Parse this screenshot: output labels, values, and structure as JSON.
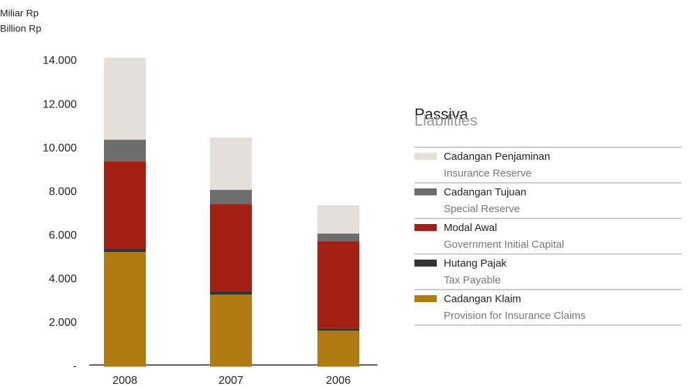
{
  "chart_data": {
    "type": "stacked_bar",
    "y_label": [
      "Miliar Rp",
      "Billion Rp"
    ],
    "legend_title": "Passiva",
    "legend_subtitle": "Liabilities",
    "categories": [
      "2008",
      "2007",
      "2006"
    ],
    "series": [
      {
        "name": "Cadangan Penjaminan",
        "name_en": "Insurance Reserve",
        "color": "#e4e0d9",
        "values": [
          3750,
          2400,
          1300
        ]
      },
      {
        "name": "Cadangan Tujuan",
        "name_en": "Special Reserve",
        "color": "#6d6d6d",
        "values": [
          1000,
          650,
          350
        ]
      },
      {
        "name": "Modal Awal",
        "name_en": "Government Initial Capital",
        "color": "#a32017",
        "values": [
          4000,
          4000,
          4000
        ]
      },
      {
        "name": "Hutang Pajak",
        "name_en": "Tax Payable",
        "color": "#333333",
        "values": [
          150,
          150,
          100
        ]
      },
      {
        "name": "Cadangan Klaim",
        "name_en": "Provision for Insurance Claims",
        "color": "#b07c12",
        "values": [
          5250,
          3300,
          1650
        ]
      }
    ],
    "ylim": [
      0,
      14000
    ],
    "yticks": [
      {
        "value": 0,
        "label": "-"
      },
      {
        "value": 2000,
        "label": "2.000"
      },
      {
        "value": 4000,
        "label": "4.000"
      },
      {
        "value": 6000,
        "label": "6.000"
      },
      {
        "value": 8000,
        "label": "8.000"
      },
      {
        "value": 10000,
        "label": "10.000"
      },
      {
        "value": 12000,
        "label": "12.000"
      },
      {
        "value": 14000,
        "label": "14.000"
      }
    ]
  }
}
